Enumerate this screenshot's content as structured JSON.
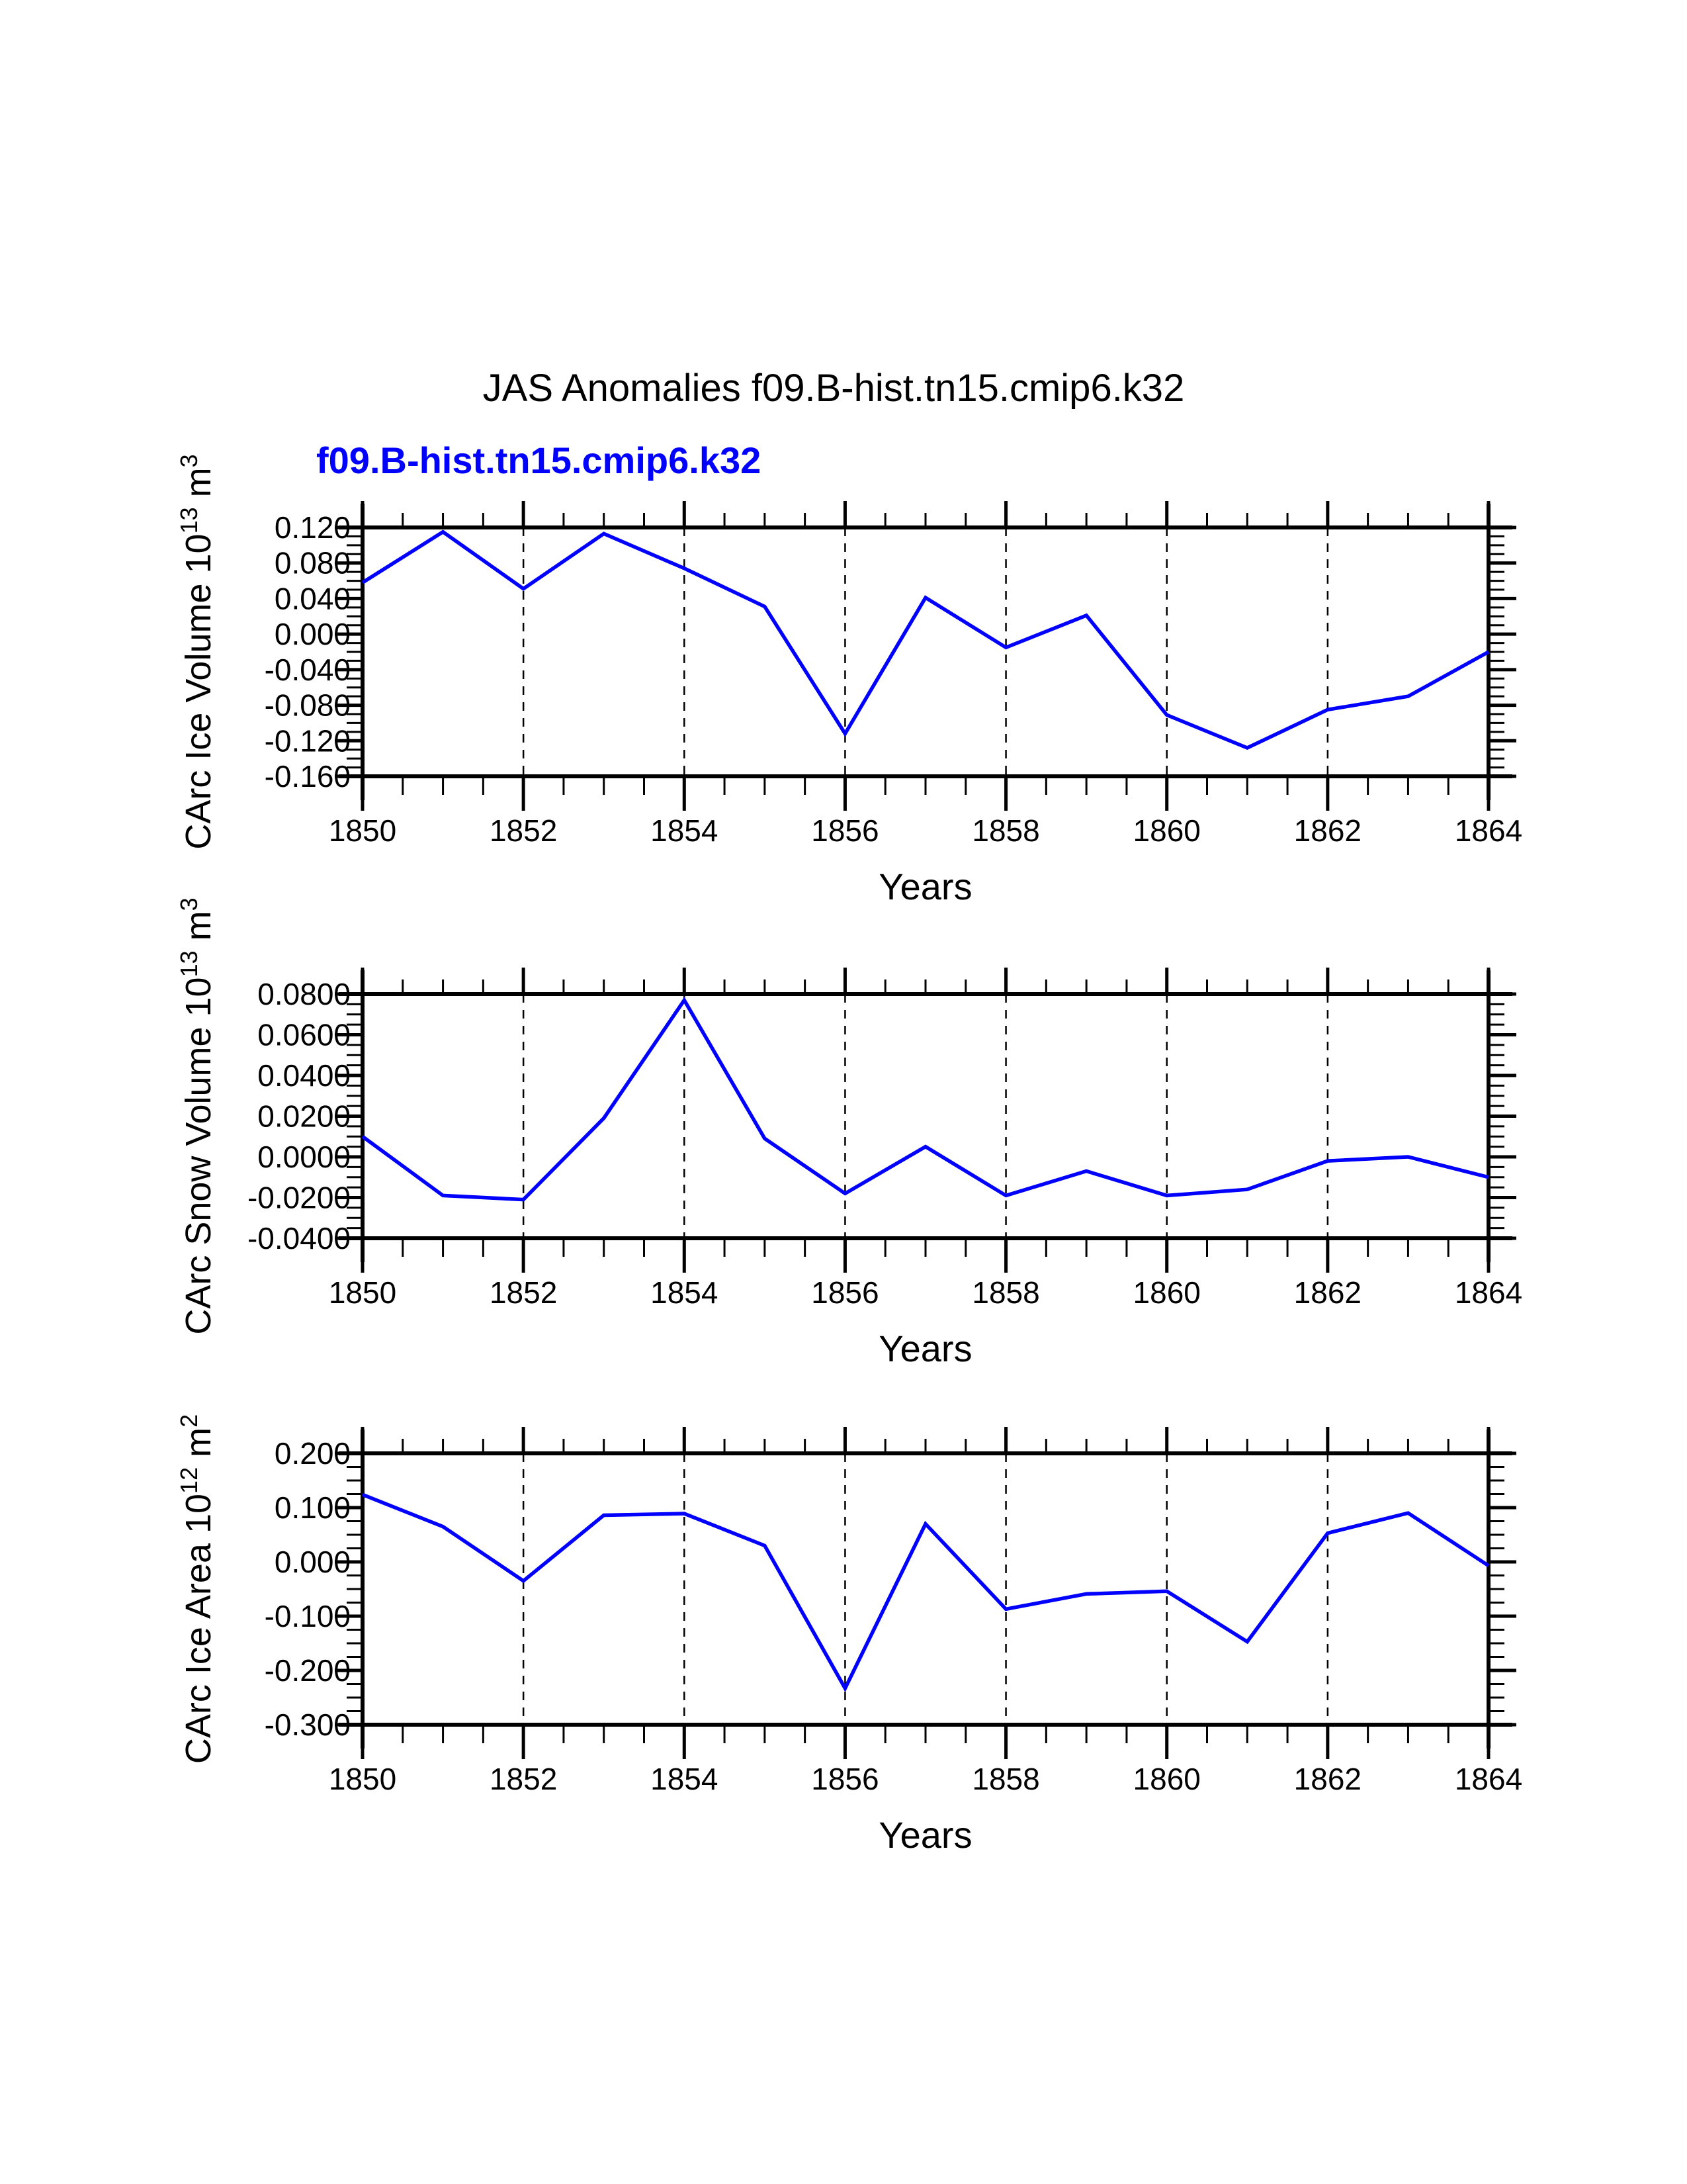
{
  "figure": {
    "title": "JAS Anomalies f09.B-hist.tn15.cmip6.k32",
    "case_label": "f09.B-hist.tn15.cmip6.k32",
    "background_color": "#ffffff",
    "title_color": "#000000",
    "case_label_color": "#0000ff",
    "line_color": "#0000ff",
    "axis_color": "#000000"
  },
  "chart_data": [
    {
      "name": "carc-ice-volume",
      "type": "line",
      "title": "",
      "xlabel": "Years",
      "ylabel": "CArc Ice Volume 10^13 m^3",
      "ylabel_parts": [
        {
          "text": "CArc Ice Volume 10"
        },
        {
          "sup": "13"
        },
        {
          "text": " m"
        },
        {
          "sup": "3"
        }
      ],
      "x": [
        1850,
        1851,
        1852,
        1853,
        1854,
        1855,
        1856,
        1857,
        1858,
        1859,
        1860,
        1861,
        1862,
        1863,
        1864
      ],
      "series": [
        {
          "name": "f09.B-hist.tn15.cmip6.k32",
          "values": [
            0.058,
            0.115,
            0.051,
            0.113,
            0.074,
            0.031,
            -0.112,
            0.041,
            -0.015,
            0.021,
            -0.091,
            -0.128,
            -0.085,
            -0.07,
            -0.02
          ]
        }
      ],
      "xlim": [
        1850,
        1864
      ],
      "ylim": [
        -0.16,
        0.12
      ],
      "ytick_step": 0.04,
      "ytick_labels": [
        "0.120",
        "0.080",
        "0.040",
        "0.000",
        "-0.040",
        "-0.080",
        "-0.120",
        "-0.160"
      ],
      "xtick_labels": [
        "1850",
        "1852",
        "1854",
        "1856",
        "1858",
        "1860",
        "1862",
        "1864"
      ],
      "grid_years": [
        1852,
        1854,
        1856,
        1858,
        1860,
        1862
      ],
      "grid": "vertical-dashed",
      "legend": "none"
    },
    {
      "name": "carc-snow-volume",
      "type": "line",
      "title": "",
      "xlabel": "Years",
      "ylabel": "CArc Snow Volume 10^13 m^3",
      "ylabel_parts": [
        {
          "text": "CArc Snow Volume 10"
        },
        {
          "sup": "13"
        },
        {
          "text": " m"
        },
        {
          "sup": "3"
        }
      ],
      "x": [
        1850,
        1851,
        1852,
        1853,
        1854,
        1855,
        1856,
        1857,
        1858,
        1859,
        1860,
        1861,
        1862,
        1863,
        1864
      ],
      "series": [
        {
          "name": "f09.B-hist.tn15.cmip6.k32",
          "values": [
            0.01,
            -0.019,
            -0.021,
            0.019,
            0.077,
            0.009,
            -0.018,
            0.005,
            -0.019,
            -0.007,
            -0.019,
            -0.016,
            -0.002,
            0.0,
            -0.01
          ]
        }
      ],
      "xlim": [
        1850,
        1864
      ],
      "ylim": [
        -0.04,
        0.08
      ],
      "ytick_step": 0.02,
      "ytick_labels": [
        "0.0800",
        "0.0600",
        "0.0400",
        "0.0200",
        "0.0000",
        "-0.0200",
        "-0.0400"
      ],
      "xtick_labels": [
        "1850",
        "1852",
        "1854",
        "1856",
        "1858",
        "1860",
        "1862",
        "1864"
      ],
      "grid_years": [
        1852,
        1854,
        1856,
        1858,
        1860,
        1862
      ],
      "grid": "vertical-dashed",
      "legend": "none"
    },
    {
      "name": "carc-ice-area",
      "type": "line",
      "title": "",
      "xlabel": "Years",
      "ylabel": "CArc Ice Area 10^12 m^2",
      "ylabel_parts": [
        {
          "text": "CArc Ice Area 10"
        },
        {
          "sup": "12"
        },
        {
          "text": " m"
        },
        {
          "sup": "2"
        }
      ],
      "x": [
        1850,
        1851,
        1852,
        1853,
        1854,
        1855,
        1856,
        1857,
        1858,
        1859,
        1860,
        1861,
        1862,
        1863,
        1864
      ],
      "series": [
        {
          "name": "f09.B-hist.tn15.cmip6.k32",
          "values": [
            0.124,
            0.065,
            -0.035,
            0.086,
            0.089,
            0.03,
            -0.233,
            0.07,
            -0.087,
            -0.059,
            -0.054,
            -0.147,
            0.053,
            0.09,
            -0.007
          ]
        }
      ],
      "xlim": [
        1850,
        1864
      ],
      "ylim": [
        -0.3,
        0.2
      ],
      "ytick_step": 0.1,
      "ytick_labels": [
        "0.200",
        "0.100",
        "0.000",
        "-0.100",
        "-0.200",
        "-0.300"
      ],
      "xtick_labels": [
        "1850",
        "1852",
        "1854",
        "1856",
        "1858",
        "1860",
        "1862",
        "1864"
      ],
      "grid_years": [
        1852,
        1854,
        1856,
        1858,
        1860,
        1862
      ],
      "grid": "vertical-dashed",
      "legend": "none"
    }
  ]
}
